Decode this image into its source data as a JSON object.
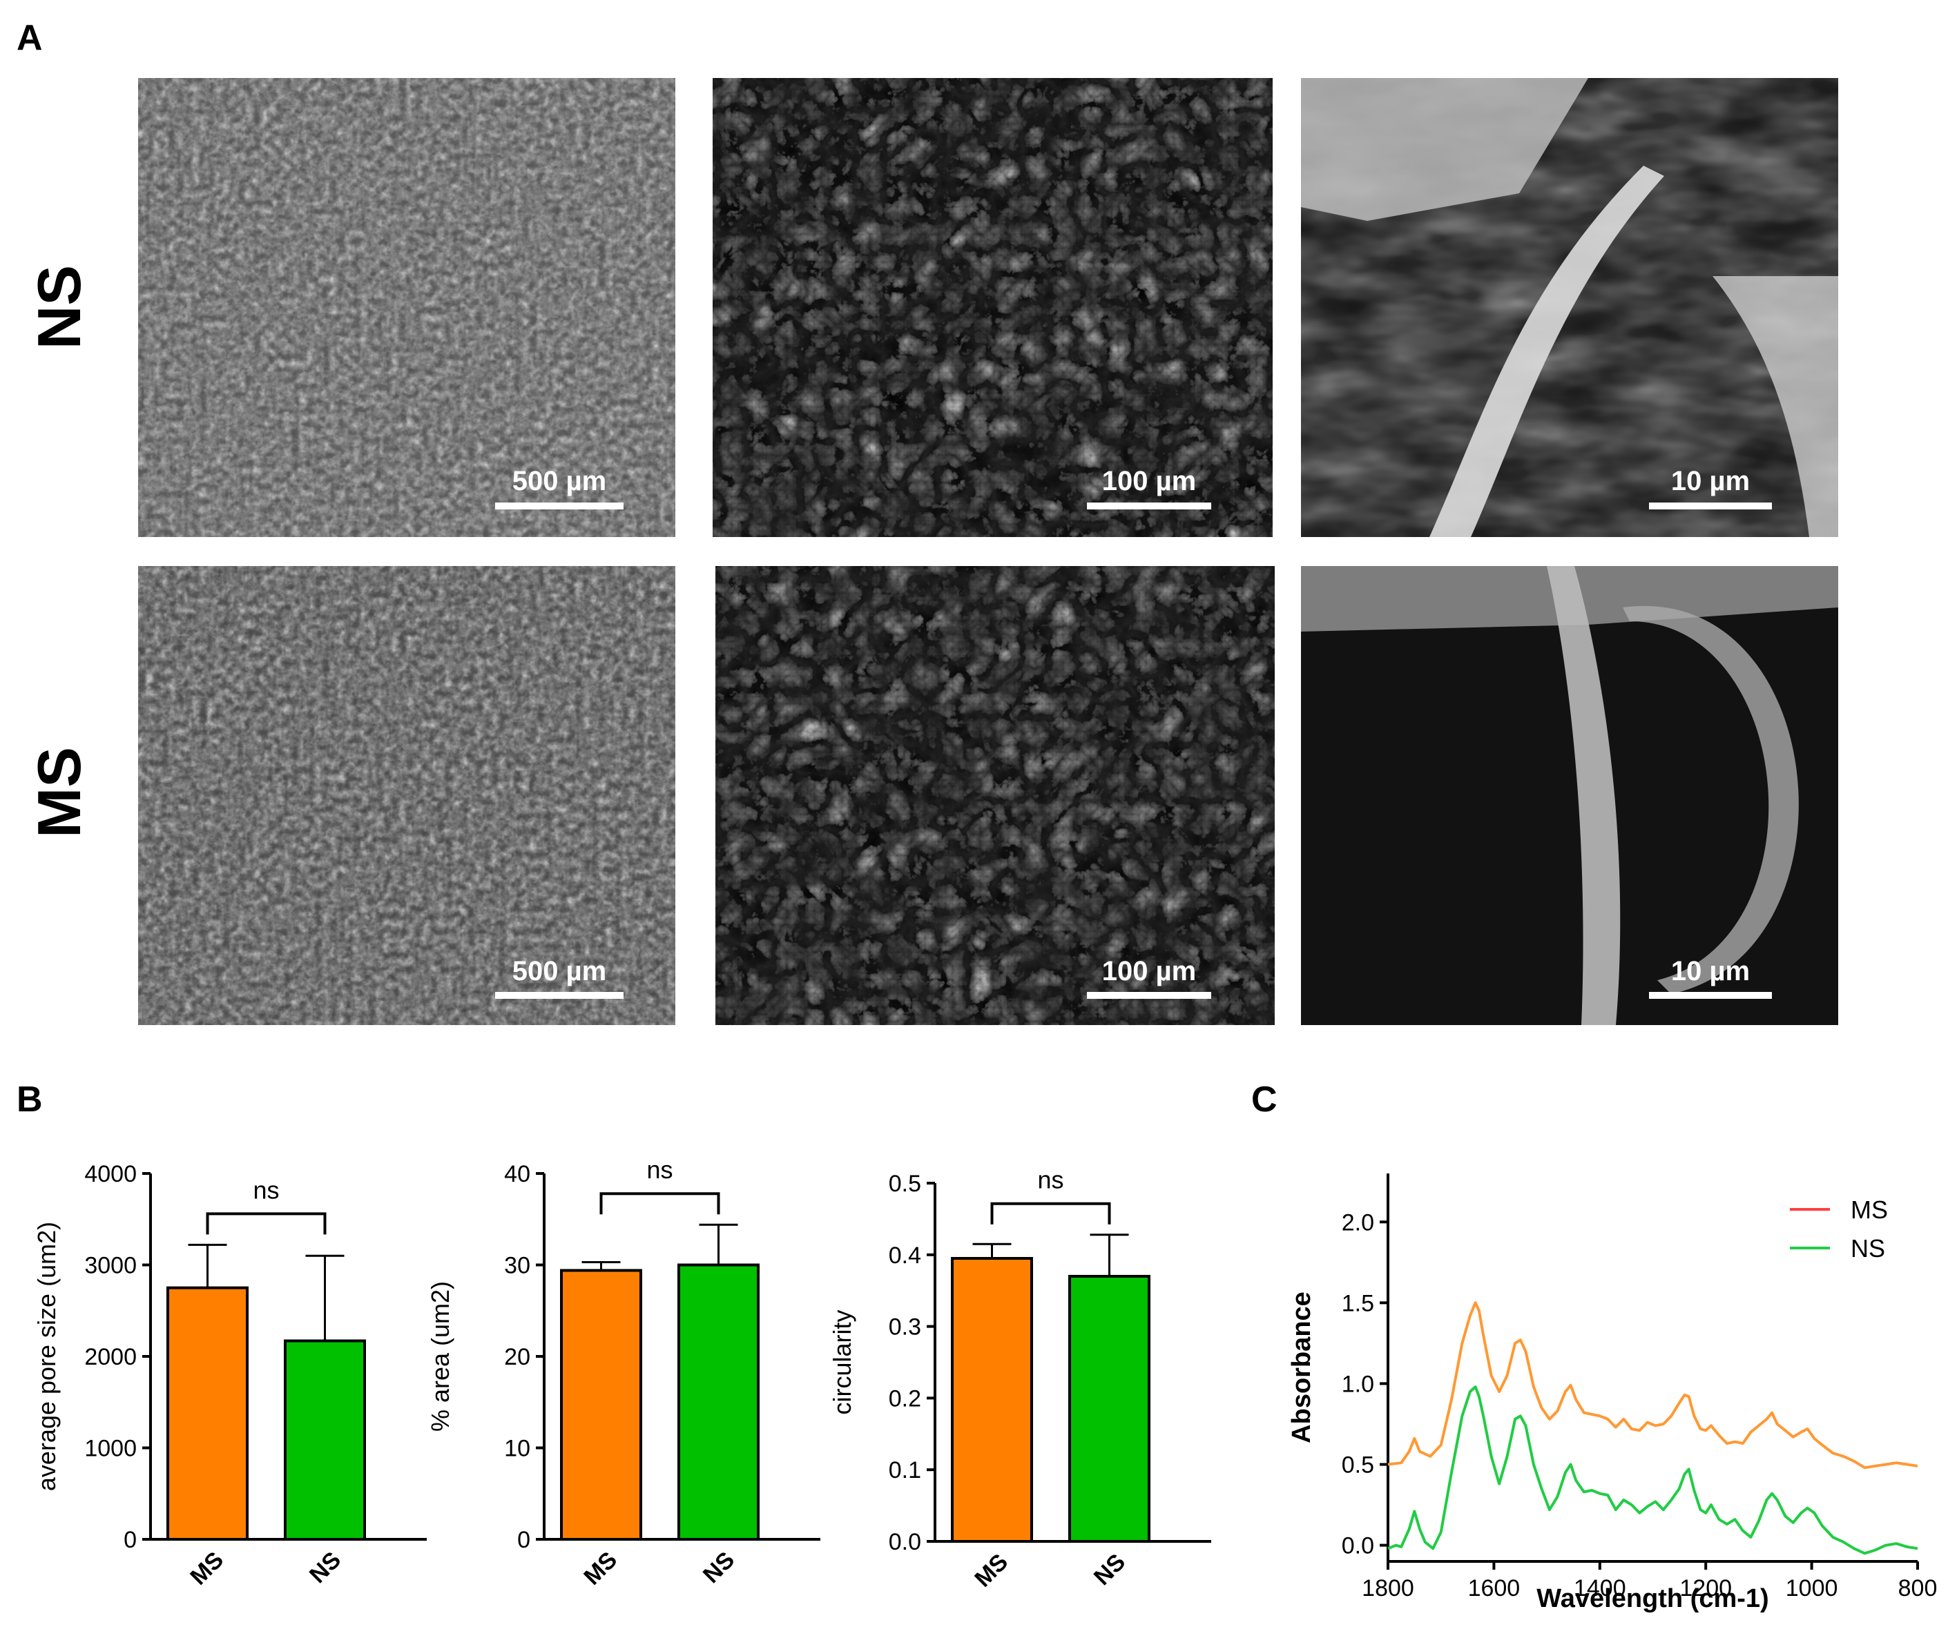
{
  "panels": {
    "A": "A",
    "B": "B",
    "C": "C"
  },
  "micrographs": {
    "rows": [
      {
        "label": "NS",
        "scale_bars": [
          "500 µm",
          "100 µm",
          "10 µm"
        ]
      },
      {
        "label": "MS",
        "scale_bars": [
          "500 µm",
          "100 µm",
          "10 µm"
        ]
      }
    ]
  },
  "colors": {
    "MS": "#ff8000",
    "NS": "#00c000",
    "MS_legend": "#ff4040",
    "NS_legend": "#22cc44",
    "MS_line": "#ff9933",
    "NS_line": "#22cc44"
  },
  "chart_data": [
    {
      "type": "bar",
      "ylabel": "average pore size (um2)",
      "categories": [
        "MS",
        "NS"
      ],
      "values": [
        2750,
        2170
      ],
      "errors": [
        470,
        930
      ],
      "ylim": [
        0,
        4000
      ],
      "yticks": [
        "0",
        "1000",
        "2000",
        "3000",
        "4000"
      ],
      "significance": "ns"
    },
    {
      "type": "bar",
      "ylabel": "% area (um2)",
      "categories": [
        "MS",
        "NS"
      ],
      "values": [
        29.4,
        30.0
      ],
      "errors": [
        0.9,
        4.4
      ],
      "ylim": [
        0,
        40
      ],
      "yticks": [
        "0",
        "10",
        "20",
        "30",
        "40"
      ],
      "significance": "ns"
    },
    {
      "type": "bar",
      "ylabel": "circularity",
      "categories": [
        "MS",
        "NS"
      ],
      "values": [
        0.395,
        0.37
      ],
      "errors": [
        0.02,
        0.058
      ],
      "ylim": [
        0,
        0.5
      ],
      "yticks": [
        "0.0",
        "0.1",
        "0.2",
        "0.3",
        "0.4",
        "0.5"
      ],
      "significance": "ns"
    },
    {
      "type": "line",
      "xlabel": "Wavelength (cm-1)",
      "ylabel": "Absorbance",
      "xlim": [
        1800,
        800
      ],
      "ylim": [
        -0.1,
        2.3
      ],
      "xticks": [
        "1800",
        "1600",
        "1400",
        "1200",
        "1000",
        "800"
      ],
      "yticks": [
        "0.0",
        "0.5",
        "1.0",
        "1.5",
        "2.0"
      ],
      "legend": "top-right",
      "series": [
        {
          "name": "MS",
          "x": [
            1800,
            1775,
            1760,
            1750,
            1740,
            1720,
            1700,
            1680,
            1660,
            1645,
            1635,
            1628,
            1620,
            1605,
            1590,
            1575,
            1560,
            1550,
            1540,
            1525,
            1510,
            1495,
            1480,
            1465,
            1455,
            1445,
            1430,
            1415,
            1400,
            1385,
            1370,
            1355,
            1340,
            1325,
            1310,
            1295,
            1280,
            1265,
            1250,
            1240,
            1232,
            1222,
            1210,
            1200,
            1190,
            1175,
            1160,
            1145,
            1130,
            1115,
            1100,
            1085,
            1075,
            1065,
            1050,
            1035,
            1020,
            1008,
            995,
            980,
            960,
            940,
            920,
            900,
            880,
            860,
            840,
            820,
            800
          ],
          "y": [
            0.5,
            0.51,
            0.58,
            0.66,
            0.58,
            0.55,
            0.62,
            0.9,
            1.25,
            1.42,
            1.5,
            1.45,
            1.3,
            1.05,
            0.95,
            1.05,
            1.25,
            1.27,
            1.2,
            0.98,
            0.85,
            0.78,
            0.83,
            0.95,
            0.99,
            0.9,
            0.82,
            0.81,
            0.8,
            0.78,
            0.73,
            0.78,
            0.72,
            0.71,
            0.76,
            0.74,
            0.75,
            0.8,
            0.88,
            0.93,
            0.92,
            0.8,
            0.72,
            0.71,
            0.74,
            0.68,
            0.63,
            0.64,
            0.63,
            0.7,
            0.74,
            0.78,
            0.82,
            0.75,
            0.71,
            0.67,
            0.7,
            0.72,
            0.66,
            0.62,
            0.57,
            0.55,
            0.52,
            0.48,
            0.49,
            0.5,
            0.51,
            0.5,
            0.49
          ]
        },
        {
          "name": "NS",
          "x": [
            1800,
            1785,
            1775,
            1760,
            1750,
            1740,
            1730,
            1715,
            1700,
            1680,
            1660,
            1645,
            1635,
            1628,
            1620,
            1605,
            1590,
            1575,
            1560,
            1550,
            1540,
            1525,
            1510,
            1495,
            1480,
            1465,
            1455,
            1445,
            1430,
            1415,
            1400,
            1385,
            1370,
            1355,
            1340,
            1325,
            1310,
            1295,
            1280,
            1265,
            1250,
            1240,
            1232,
            1222,
            1210,
            1200,
            1190,
            1175,
            1160,
            1145,
            1130,
            1115,
            1100,
            1085,
            1075,
            1065,
            1050,
            1035,
            1020,
            1008,
            995,
            980,
            960,
            940,
            920,
            900,
            880,
            860,
            840,
            820,
            800
          ],
          "y": [
            -0.02,
            0.0,
            -0.01,
            0.1,
            0.21,
            0.1,
            0.02,
            -0.02,
            0.08,
            0.45,
            0.8,
            0.95,
            0.98,
            0.92,
            0.8,
            0.55,
            0.38,
            0.55,
            0.78,
            0.8,
            0.74,
            0.5,
            0.35,
            0.22,
            0.3,
            0.45,
            0.5,
            0.4,
            0.33,
            0.34,
            0.32,
            0.31,
            0.22,
            0.28,
            0.25,
            0.2,
            0.24,
            0.27,
            0.22,
            0.28,
            0.35,
            0.44,
            0.47,
            0.34,
            0.22,
            0.2,
            0.25,
            0.16,
            0.13,
            0.16,
            0.09,
            0.05,
            0.15,
            0.28,
            0.32,
            0.28,
            0.18,
            0.14,
            0.2,
            0.23,
            0.2,
            0.12,
            0.05,
            0.02,
            -0.02,
            -0.05,
            -0.03,
            0.0,
            0.01,
            -0.01,
            -0.02
          ]
        }
      ]
    }
  ]
}
